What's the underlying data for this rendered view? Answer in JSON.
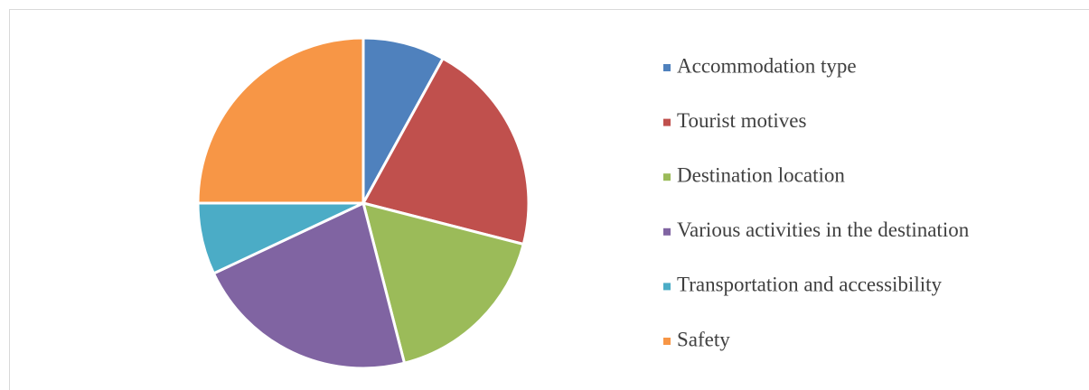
{
  "chart_data": {
    "type": "pie",
    "categories": [
      "Accommodation type",
      "Tourist motives",
      "Destination location",
      "Various activities in the destination",
      "Transportation and accessibility",
      "Safety"
    ],
    "values": [
      8,
      21,
      17,
      22,
      7,
      25
    ],
    "colors": [
      "#4f81bd",
      "#c0504d",
      "#9bbb59",
      "#8064a2",
      "#4bacc6",
      "#f79646"
    ],
    "legend": "right"
  }
}
